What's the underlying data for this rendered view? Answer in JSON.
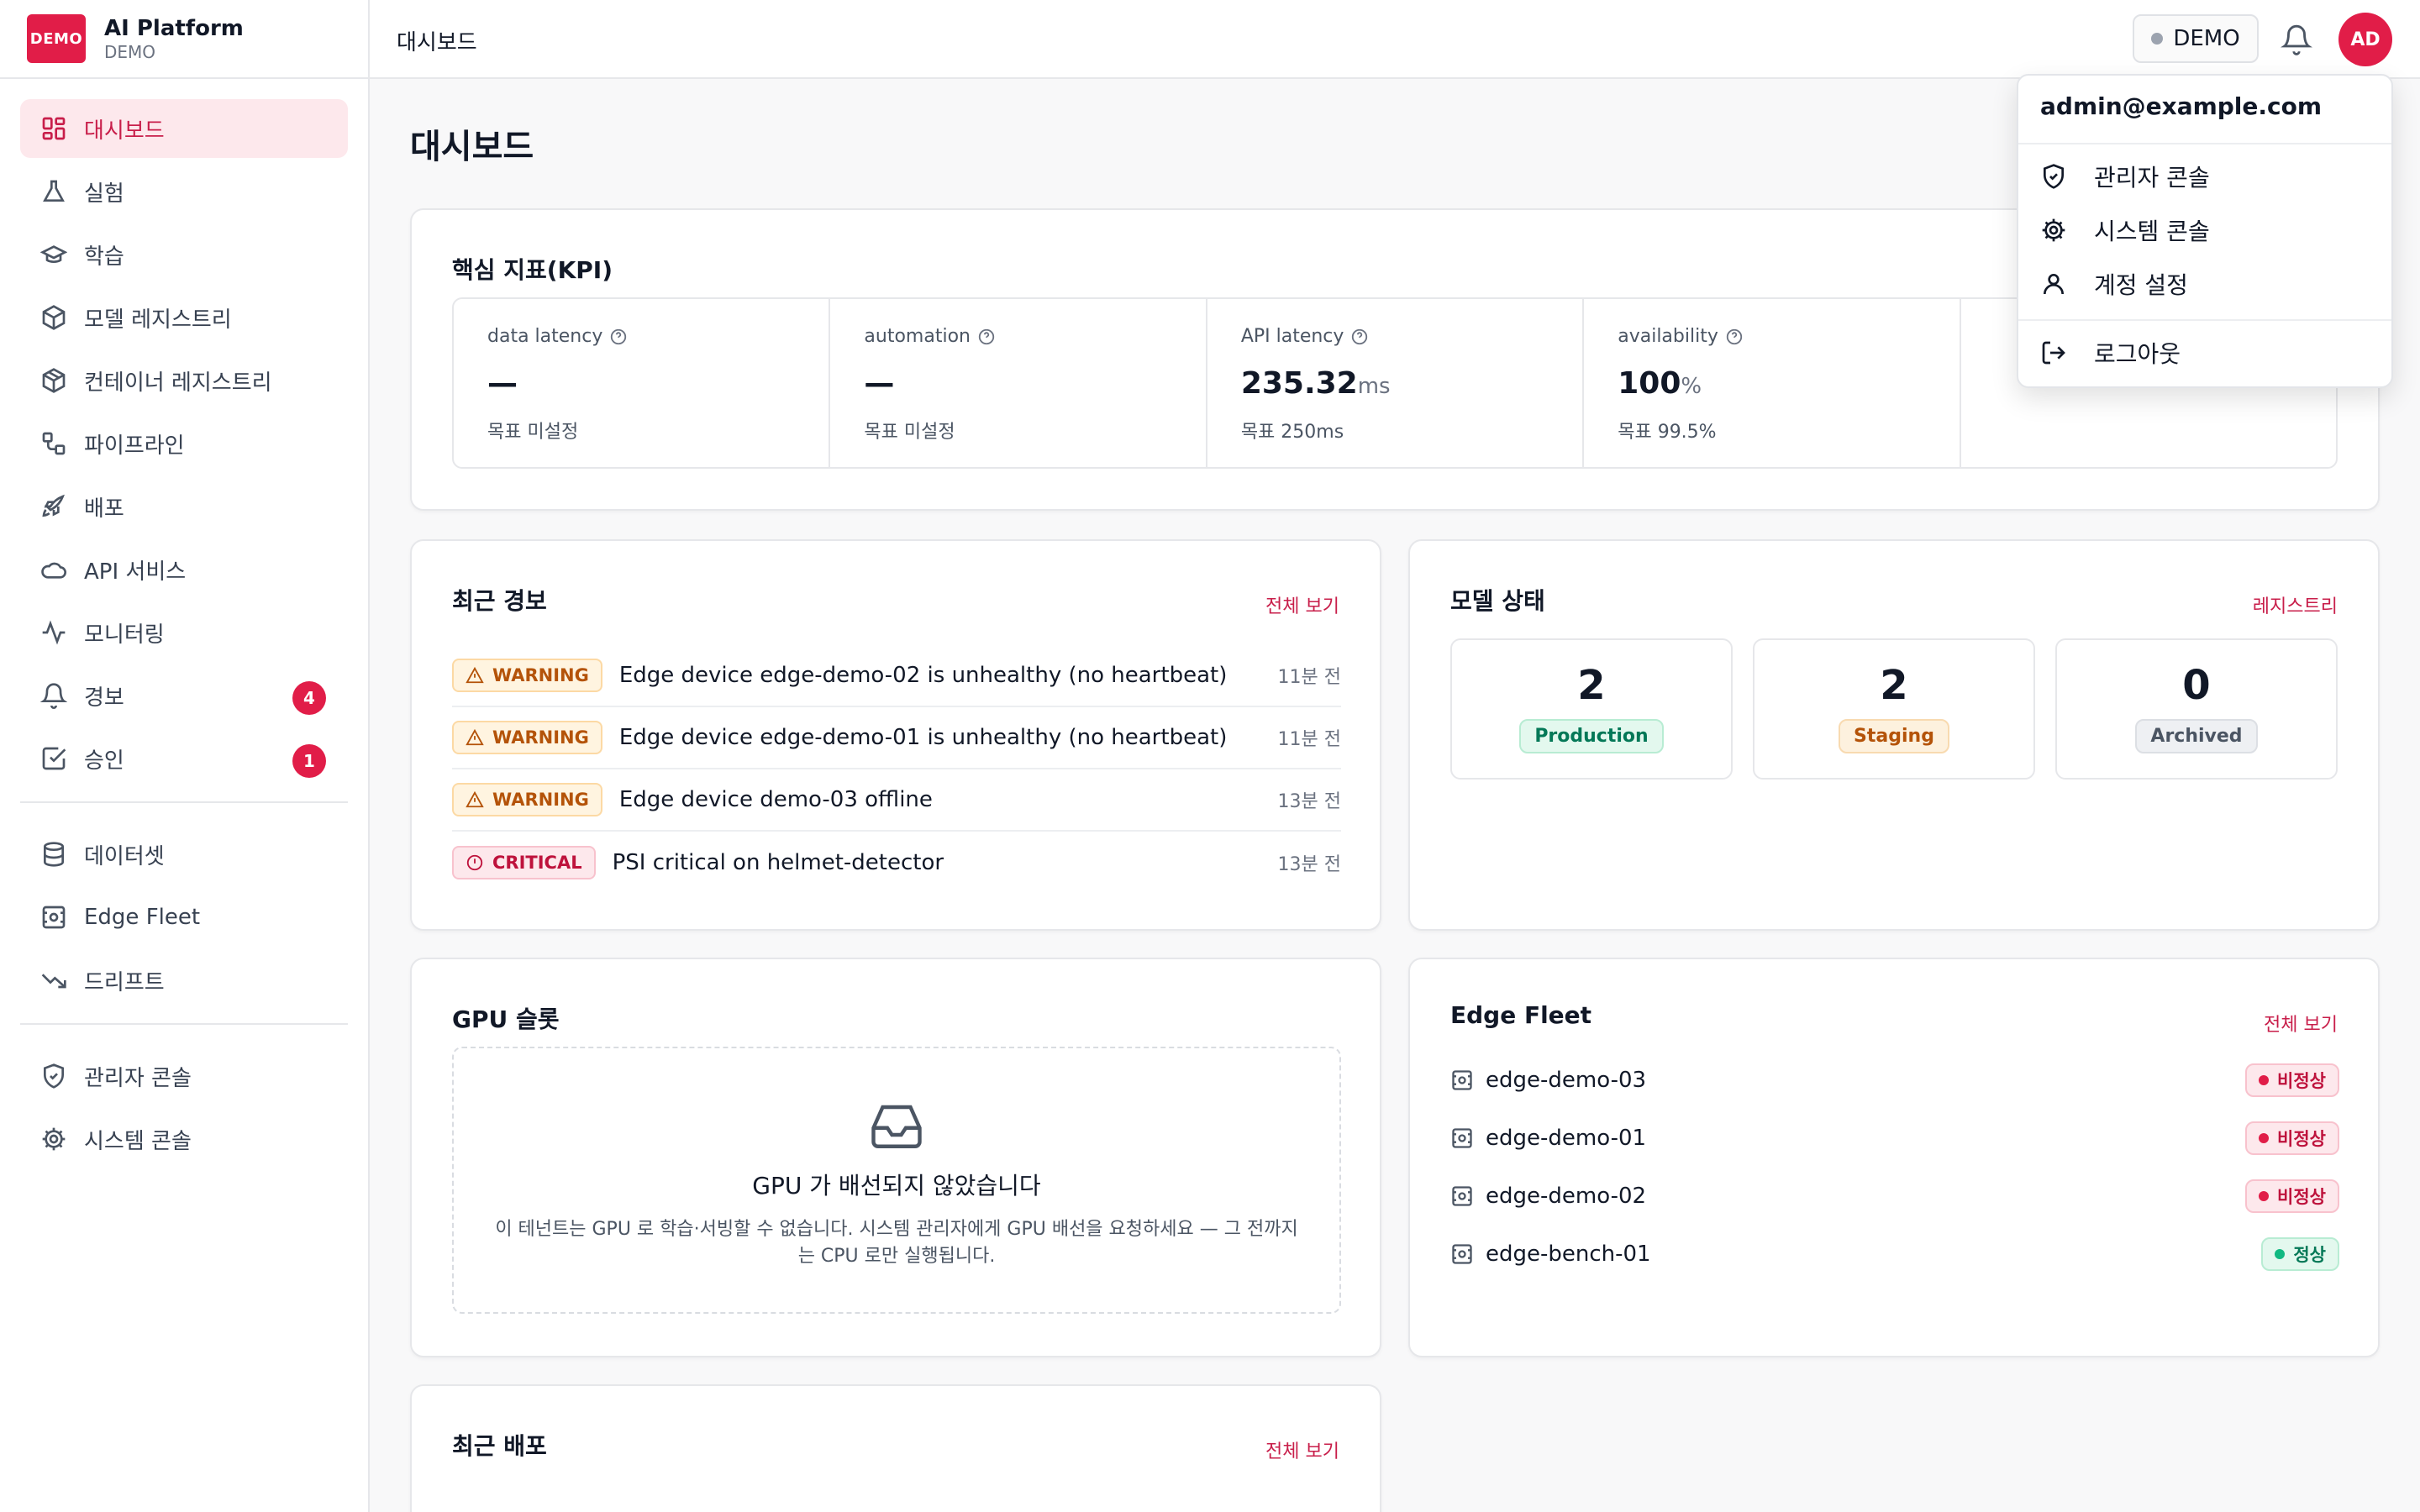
{
  "brand": {
    "logo": "DEMO",
    "title": "AI Platform",
    "subtitle": "DEMO"
  },
  "sidebar": {
    "items": [
      {
        "label": "대시보드",
        "icon": "dashboard-icon",
        "active": true
      },
      {
        "label": "실험",
        "icon": "flask-icon"
      },
      {
        "label": "학습",
        "icon": "graduation-cap-icon"
      },
      {
        "label": "모델 레지스트리",
        "icon": "box-icon"
      },
      {
        "label": "컨테이너 레지스트리",
        "icon": "container-icon"
      },
      {
        "label": "파이프라인",
        "icon": "workflow-icon"
      },
      {
        "label": "배포",
        "icon": "rocket-icon"
      },
      {
        "label": "API 서비스",
        "icon": "cloud-icon"
      },
      {
        "label": "모니터링",
        "icon": "activity-icon"
      },
      {
        "label": "경보",
        "icon": "bell-icon",
        "badge": "4"
      },
      {
        "label": "승인",
        "icon": "check-square-icon",
        "badge": "1"
      },
      {
        "label": "데이터셋",
        "icon": "database-icon"
      },
      {
        "label": "Edge Fleet",
        "icon": "edge-device-icon"
      },
      {
        "label": "드리프트",
        "icon": "trend-down-icon"
      },
      {
        "label": "관리자 콘솔",
        "icon": "shield-icon"
      },
      {
        "label": "시스템 콘솔",
        "icon": "gear-icon"
      }
    ]
  },
  "topbar": {
    "breadcrumb": "대시보드",
    "tenant": "DEMO",
    "avatar": "AD"
  },
  "page": {
    "title": "대시보드"
  },
  "kpi": {
    "title": "핵심 지표(KPI)",
    "cells": [
      {
        "label": "data latency",
        "value": "—",
        "unit": "",
        "target": "목표 미설정"
      },
      {
        "label": "automation",
        "value": "—",
        "unit": "",
        "target": "목표 미설정"
      },
      {
        "label": "API latency",
        "value": "235.32",
        "unit": "ms",
        "target": "목표 250ms"
      },
      {
        "label": "availability",
        "value": "100",
        "unit": "%",
        "target": "목표 99.5%"
      },
      {
        "label": "",
        "value": "",
        "unit": "",
        "target": ""
      }
    ]
  },
  "alerts": {
    "title": "최근 경보",
    "link": "전체 보기",
    "rows": [
      {
        "severity": "WARNING",
        "message": "Edge device edge-demo-02 is unhealthy (no heartbeat)",
        "time": "11분 전"
      },
      {
        "severity": "WARNING",
        "message": "Edge device edge-demo-01 is unhealthy (no heartbeat)",
        "time": "11분 전"
      },
      {
        "severity": "WARNING",
        "message": "Edge device demo-03 offline",
        "time": "13분 전"
      },
      {
        "severity": "CRITICAL",
        "message": "PSI critical on helmet-detector",
        "time": "13분 전"
      }
    ]
  },
  "models": {
    "title": "모델 상태",
    "link": "레지스트리",
    "stats": [
      {
        "count": "2",
        "label": "Production"
      },
      {
        "count": "2",
        "label": "Staging"
      },
      {
        "count": "0",
        "label": "Archived"
      }
    ]
  },
  "gpu": {
    "title": "GPU 슬롯",
    "empty_title": "GPU 가 배선되지 않았습니다",
    "empty_desc": "이 테넌트는 GPU 로 학습·서빙할 수 없습니다. 시스템 관리자에게 GPU 배선을 요청하세요 — 그 전까지는 CPU 로만 실행됩니다."
  },
  "edge": {
    "title": "Edge Fleet",
    "link": "전체 보기",
    "devices": [
      {
        "name": "edge-demo-03",
        "status": "비정상",
        "ok": false
      },
      {
        "name": "edge-demo-01",
        "status": "비정상",
        "ok": false
      },
      {
        "name": "edge-demo-02",
        "status": "비정상",
        "ok": false
      },
      {
        "name": "edge-bench-01",
        "status": "정상",
        "ok": true
      }
    ]
  },
  "deploys": {
    "title": "최근 배포",
    "link": "전체 보기"
  },
  "user_menu": {
    "email": "admin@example.com",
    "items": [
      {
        "label": "관리자 콘솔",
        "icon": "shield-icon"
      },
      {
        "label": "시스템 콘솔",
        "icon": "gear-icon"
      },
      {
        "label": "계정 설정",
        "icon": "user-icon"
      },
      {
        "label": "로그아웃",
        "icon": "logout-icon"
      }
    ]
  },
  "colors": {
    "accent": "#e11d48",
    "warning": "#b45309",
    "critical": "#be123c",
    "success": "#047857"
  }
}
